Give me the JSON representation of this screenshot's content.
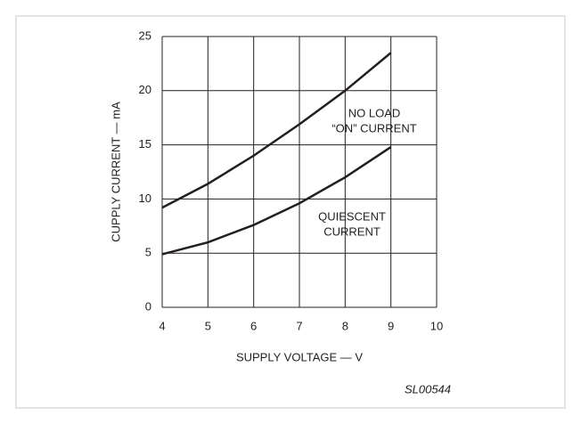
{
  "chart_data": {
    "type": "line",
    "xlabel": "SUPPLY VOLTAGE — V",
    "ylabel": "CUPPLY CURRENT — mA",
    "x": [
      4,
      5,
      6,
      7,
      8,
      9
    ],
    "series": [
      {
        "color": "#231f20",
        "values": [
          9.2,
          11.4,
          14,
          16.9,
          20,
          23.5
        ]
      },
      {
        "color": "#231f20",
        "values": [
          4.9,
          6,
          7.6,
          9.6,
          12,
          14.8
        ]
      }
    ],
    "annotations": [
      {
        "lines": [
          "NO LOAD",
          "“ON” CURRENT"
        ]
      },
      {
        "lines": [
          "QUIESCENT",
          "CURRENT"
        ]
      }
    ],
    "figure_id": "SL00544",
    "xlim": [
      4,
      10
    ],
    "xticks": [
      4,
      5,
      6,
      7,
      8,
      9,
      10
    ],
    "ylim": [
      0,
      25
    ],
    "yticks": [
      0,
      5,
      10,
      15,
      20,
      25
    ],
    "grid": true
  }
}
